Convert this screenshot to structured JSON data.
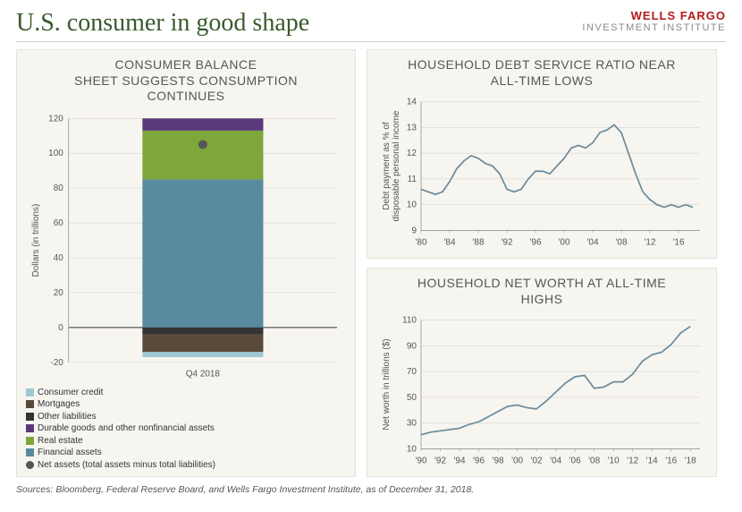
{
  "header": {
    "title": "U.S. consumer in good shape",
    "brand_top": "WELLS FARGO",
    "brand_bot": "INVESTMENT INSTITUTE"
  },
  "left_chart": {
    "title_l1": "CONSUMER BALANCE",
    "title_l2": "SHEET SUGGESTS CONSUMPTION",
    "title_l3": "CONTINUES",
    "y_title": "Dollars (in trillions)",
    "y_min": -20,
    "y_max": 120,
    "y_step": 20,
    "x_label": "Q4 2018",
    "bar_width": 0.45,
    "segments": [
      {
        "key": "consumer_credit",
        "label": "Consumer credit",
        "from": -17,
        "to": -14,
        "color": "#9fc7d6"
      },
      {
        "key": "mortgages",
        "label": "Mortgages",
        "from": -14,
        "to": -4,
        "color": "#5a4a3a"
      },
      {
        "key": "other_liab",
        "label": "Other liabilities",
        "from": -4,
        "to": 0,
        "color": "#333333"
      },
      {
        "key": "financial",
        "label": "Financial assets",
        "from": 0,
        "to": 85,
        "color": "#5a8aa0"
      },
      {
        "key": "real_estate",
        "label": "Real estate",
        "from": 85,
        "to": 113,
        "color": "#7ea63a"
      },
      {
        "key": "durable",
        "label": "Durable goods and other nonfinancial assets",
        "from": 113,
        "to": 120,
        "color": "#5a3a7a"
      }
    ],
    "net_asset": {
      "value": 105,
      "label": "Net assets (total assets minus total liabilities)",
      "color": "#555555",
      "radius": 5
    },
    "legend_order": [
      "consumer_credit",
      "mortgages",
      "other_liab",
      "durable",
      "real_estate",
      "financial"
    ]
  },
  "debt_chart": {
    "title_l1": "HOUSEHOLD DEBT SERVICE RATIO NEAR",
    "title_l2": "ALL-TIME LOWS",
    "y_title_l1": "Debt payment as % of",
    "y_title_l2": "disposable personal income",
    "y_min": 9,
    "y_max": 14,
    "y_step": 1,
    "x_min": 1980,
    "x_max": 2019,
    "x_ticks": [
      "'80",
      "'84",
      "'88",
      "'92",
      "'96",
      "'00",
      "'04",
      "'08",
      "'12",
      "'16"
    ],
    "line_color": "#6a8a9a",
    "line_width": 1.7,
    "series": [
      [
        1980,
        10.6
      ],
      [
        1981,
        10.5
      ],
      [
        1982,
        10.4
      ],
      [
        1983,
        10.5
      ],
      [
        1984,
        10.9
      ],
      [
        1985,
        11.4
      ],
      [
        1986,
        11.7
      ],
      [
        1987,
        11.9
      ],
      [
        1988,
        11.8
      ],
      [
        1989,
        11.6
      ],
      [
        1990,
        11.5
      ],
      [
        1991,
        11.2
      ],
      [
        1992,
        10.6
      ],
      [
        1993,
        10.5
      ],
      [
        1994,
        10.6
      ],
      [
        1995,
        11.0
      ],
      [
        1996,
        11.3
      ],
      [
        1997,
        11.3
      ],
      [
        1998,
        11.2
      ],
      [
        1999,
        11.5
      ],
      [
        2000,
        11.8
      ],
      [
        2001,
        12.2
      ],
      [
        2002,
        12.3
      ],
      [
        2003,
        12.2
      ],
      [
        2004,
        12.4
      ],
      [
        2005,
        12.8
      ],
      [
        2006,
        12.9
      ],
      [
        2007,
        13.1
      ],
      [
        2008,
        12.8
      ],
      [
        2009,
        12.0
      ],
      [
        2010,
        11.2
      ],
      [
        2011,
        10.5
      ],
      [
        2012,
        10.2
      ],
      [
        2013,
        10.0
      ],
      [
        2014,
        9.9
      ],
      [
        2015,
        10.0
      ],
      [
        2016,
        9.9
      ],
      [
        2017,
        10.0
      ],
      [
        2018,
        9.9
      ]
    ]
  },
  "networth_chart": {
    "title_l1": "HOUSEHOLD NET WORTH AT ALL-TIME",
    "title_l2": "HIGHS",
    "y_title": "Net worth in trillions ($)",
    "y_min": 10,
    "y_max": 110,
    "y_step": 20,
    "x_min": 1990,
    "x_max": 2019,
    "x_ticks": [
      "'90",
      "'92",
      "'94",
      "'96",
      "'98",
      "'00",
      "'02",
      "'04",
      "'06",
      "'08",
      "'10",
      "'12",
      "'14",
      "'16",
      "'18"
    ],
    "line_color": "#6a8a9a",
    "line_width": 1.7,
    "series": [
      [
        1990,
        21
      ],
      [
        1991,
        23
      ],
      [
        1992,
        24
      ],
      [
        1993,
        25
      ],
      [
        1994,
        26
      ],
      [
        1995,
        29
      ],
      [
        1996,
        31
      ],
      [
        1997,
        35
      ],
      [
        1998,
        39
      ],
      [
        1999,
        43
      ],
      [
        2000,
        44
      ],
      [
        2001,
        42
      ],
      [
        2002,
        41
      ],
      [
        2003,
        47
      ],
      [
        2004,
        54
      ],
      [
        2005,
        61
      ],
      [
        2006,
        66
      ],
      [
        2007,
        67
      ],
      [
        2008,
        57
      ],
      [
        2009,
        58
      ],
      [
        2010,
        62
      ],
      [
        2011,
        62
      ],
      [
        2012,
        68
      ],
      [
        2013,
        78
      ],
      [
        2014,
        83
      ],
      [
        2015,
        85
      ],
      [
        2016,
        91
      ],
      [
        2017,
        100
      ],
      [
        2018,
        105
      ]
    ]
  },
  "footer": "Sources: Bloomberg, Federal Reserve Board, and Wells Fargo Investment Institute, as of December 31, 2018."
}
